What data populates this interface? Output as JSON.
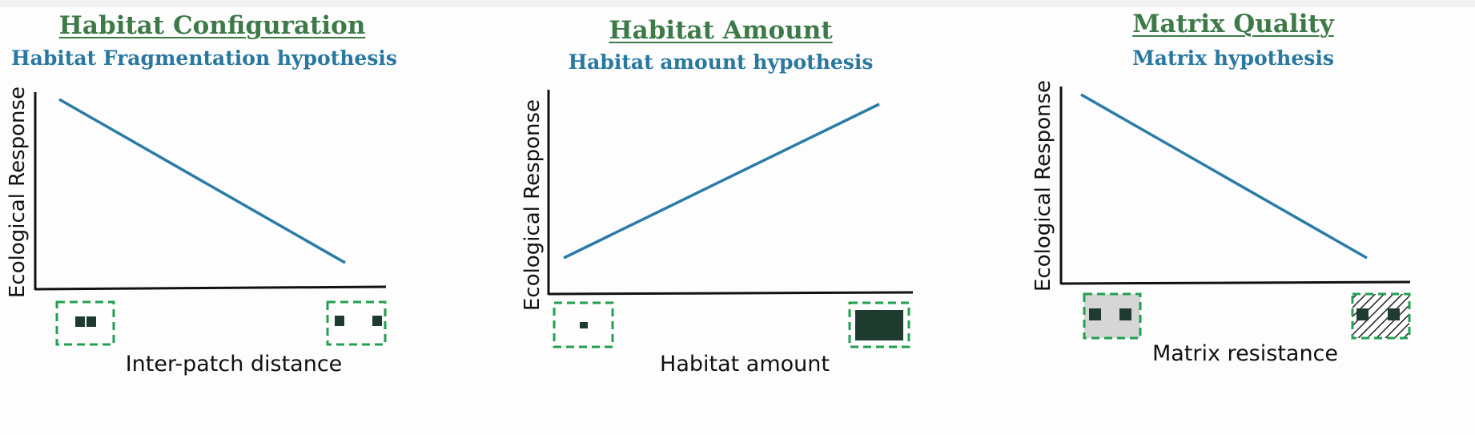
{
  "panels": [
    {
      "id": "configuration",
      "title": "Habitat Configuration",
      "subtitle": "Habitat Fragmentation hypothesis",
      "ylabel": "Ecological Response",
      "xlabel": "Inter-patch distance",
      "trend": "decreasing"
    },
    {
      "id": "amount",
      "title": "Habitat Amount",
      "subtitle": "Habitat amount hypothesis",
      "ylabel": "Ecological Response",
      "xlabel": "Habitat amount",
      "trend": "increasing"
    },
    {
      "id": "matrix",
      "title": "Matrix Quality",
      "subtitle": "Matrix hypothesis",
      "ylabel": "Ecological Response",
      "xlabel": "Matrix resistance",
      "trend": "decreasing"
    }
  ],
  "colors": {
    "title": "#3d7a48",
    "subtitle": "#2878a0",
    "trend_line": "#2a7ca8",
    "patch_border": "#22a050",
    "patch": "#1f3b30",
    "matrix_fill": "#d6d6d6"
  }
}
